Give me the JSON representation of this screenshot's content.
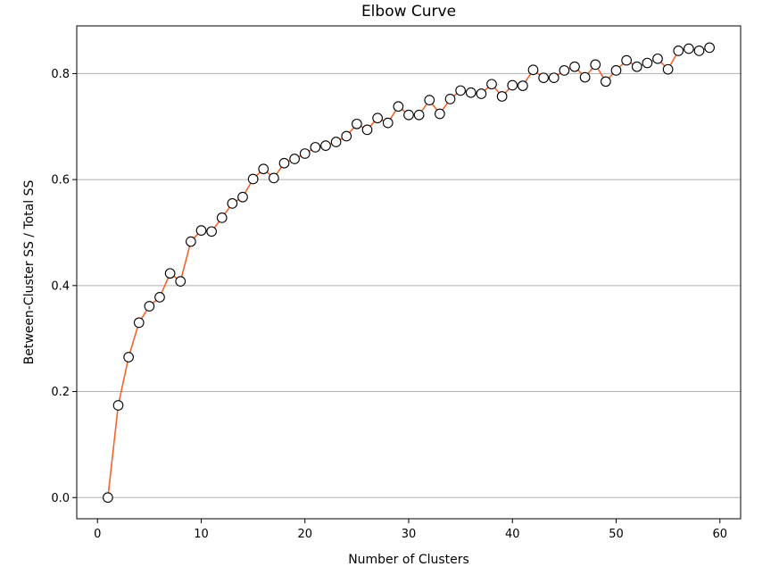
{
  "chart_data": {
    "type": "line",
    "title": "Elbow Curve",
    "xlabel": "Number of Clusters",
    "ylabel": "Between-Cluster SS / Total SS",
    "xlim": [
      -2,
      62
    ],
    "ylim": [
      -0.04,
      0.89
    ],
    "xticks": [
      0,
      10,
      20,
      30,
      40,
      50,
      60
    ],
    "yticks": [
      0.0,
      0.2,
      0.4,
      0.6,
      0.8
    ],
    "ytick_labels": [
      "0.0",
      "0.2",
      "0.4",
      "0.6",
      "0.8"
    ],
    "grid": "horizontal",
    "line_color": "#f4632b",
    "marker": "circle-open",
    "series": [
      {
        "x": [
          1,
          2,
          3,
          4,
          5,
          6,
          7,
          8,
          9,
          10,
          11,
          12,
          13,
          14,
          15,
          16,
          17,
          18,
          19,
          20,
          21,
          22,
          23,
          24,
          25,
          26,
          27,
          28,
          29,
          30,
          31,
          32,
          33,
          34,
          35,
          36,
          37,
          38,
          39,
          40,
          41,
          42,
          43,
          44,
          45,
          46,
          47,
          48,
          49,
          50,
          51,
          52,
          53,
          54,
          55,
          56,
          57,
          58,
          59
        ],
        "y": [
          0.0,
          0.174,
          0.265,
          0.33,
          0.361,
          0.378,
          0.423,
          0.408,
          0.483,
          0.504,
          0.502,
          0.528,
          0.555,
          0.567,
          0.601,
          0.62,
          0.603,
          0.631,
          0.639,
          0.649,
          0.661,
          0.664,
          0.671,
          0.682,
          0.705,
          0.694,
          0.716,
          0.707,
          0.738,
          0.722,
          0.722,
          0.75,
          0.724,
          0.752,
          0.768,
          0.764,
          0.762,
          0.78,
          0.757,
          0.778,
          0.777,
          0.807,
          0.792,
          0.792,
          0.806,
          0.813,
          0.793,
          0.817,
          0.785,
          0.806,
          0.825,
          0.813,
          0.82,
          0.828,
          0.808,
          0.843,
          0.847,
          0.843,
          0.849
        ]
      }
    ]
  }
}
